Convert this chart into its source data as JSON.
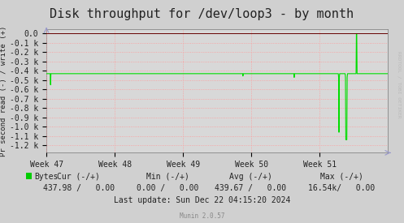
{
  "title": "Disk throughput for /dev/loop3 - by month",
  "ylabel": "Pr second read (-) / write (+)",
  "background_color": "#d0d0d0",
  "plot_background_color": "#d8d8d8",
  "grid_color": "#ff9999",
  "line_color": "#00dd00",
  "border_color": "#aaaaaa",
  "zero_line_color": "#660000",
  "arrow_color": "#9999cc",
  "ytick_vals": [
    0.0,
    -0.1,
    -0.2,
    -0.3,
    -0.4,
    -0.5,
    -0.6,
    -0.7,
    -0.8,
    -0.9,
    -1.0,
    -1.1,
    -1.2
  ],
  "ytick_labels": [
    "0.0",
    "-0.1 k",
    "-0.2 k",
    "-0.3 k",
    "-0.4 k",
    "-0.5 k",
    "-0.6 k",
    "-0.7 k",
    "-0.8 k",
    "-0.9 k",
    "-1.0 k",
    "-1.1 k",
    "-1.2 k"
  ],
  "xtick_positions": [
    0.0,
    0.2,
    0.4,
    0.6,
    0.8
  ],
  "xtick_labels": [
    "Week 47",
    "Week 48",
    "Week 49",
    "Week 50",
    "Week 51"
  ],
  "ylim_min": -1.28,
  "ylim_max": 0.05,
  "xlim_min": 0.0,
  "xlim_max": 1.0,
  "legend_label": "Bytes",
  "legend_color": "#00cc00",
  "munin_label": "Munin 2.0.57",
  "watermark": "RRDTOOL / TOBI OETIKER",
  "title_fontsize": 11,
  "axis_fontsize": 7,
  "footer_fontsize": 7,
  "cur_header": "Cur (-/+)",
  "min_header": "Min (-/+)",
  "avg_header": "Avg (-/+)",
  "max_header": "Max (-/+)",
  "cur_val": "437.98 /   0.00",
  "min_val": "0.00 /   0.00",
  "avg_val": "439.67 /   0.00",
  "max_val": "16.54k/   0.00",
  "last_update": "Last update: Sun Dec 22 04:15:20 2024"
}
